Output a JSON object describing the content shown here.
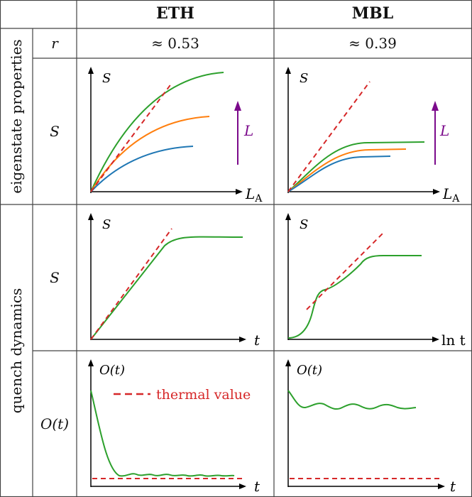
{
  "header": {
    "col_eth": "ETH",
    "col_mbl": "MBL"
  },
  "groups": {
    "eigenstate": "eigenstate properties",
    "quench": "quench dynamics"
  },
  "rows": {
    "r_label": "r",
    "s_label": "S",
    "o_label": "O(t)"
  },
  "values": {
    "eth_r": "≈ 0.53",
    "mbl_r": "≈ 0.39"
  },
  "axes": {
    "S": "S",
    "LA_main": "L",
    "LA_sub": "A",
    "L_arrow": "L",
    "t": "t",
    "ln_t": "ln t",
    "O": "O(t)"
  },
  "legend": {
    "thermal": "thermal value"
  },
  "colors": {
    "green": "#2ca02c",
    "orange": "#ff7f0e",
    "blue": "#1f77b4",
    "red_dashed": "#d62728",
    "purple": "#7b0a8b",
    "grid": "#555555"
  }
}
